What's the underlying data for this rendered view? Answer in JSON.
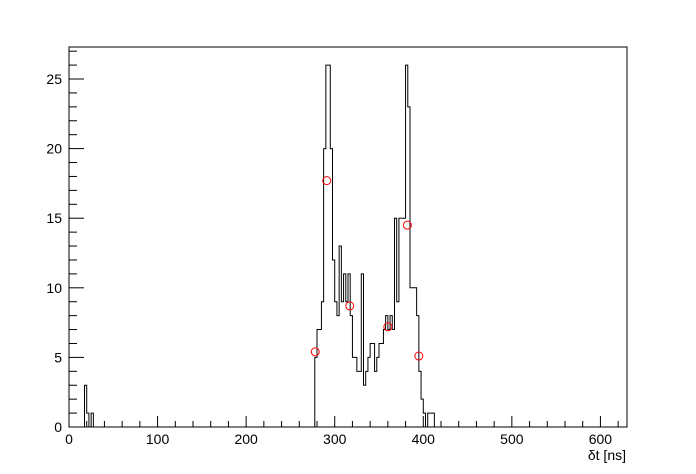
{
  "chart_data": {
    "type": "histogram",
    "title": "",
    "xlabel": "δt [ns]",
    "ylabel": "",
    "xlim": [
      0,
      630
    ],
    "ylim": [
      0,
      27.3
    ],
    "grid": false,
    "x_ticks": [
      0,
      100,
      200,
      300,
      400,
      500,
      600
    ],
    "x_tick_labels": [
      "0",
      "100",
      "200",
      "300",
      "400",
      "500",
      "600"
    ],
    "y_ticks": [
      0,
      5,
      10,
      15,
      20,
      25
    ],
    "y_tick_labels": [
      "0",
      "5",
      "10",
      "15",
      "20",
      "25"
    ],
    "line_color": "#000000",
    "marker_color": "#ff0000",
    "bin_width": 2.5,
    "bins": [
      [
        17.5,
        3
      ],
      [
        20,
        1
      ],
      [
        22.5,
        0
      ],
      [
        25,
        1
      ],
      [
        27.5,
        0
      ],
      [
        277.5,
        5
      ],
      [
        280,
        7
      ],
      [
        282.5,
        7
      ],
      [
        285,
        9
      ],
      [
        287.5,
        20
      ],
      [
        290,
        26
      ],
      [
        292.5,
        26
      ],
      [
        295,
        20
      ],
      [
        297.5,
        12
      ],
      [
        300,
        9
      ],
      [
        302.5,
        8
      ],
      [
        305,
        13
      ],
      [
        307.5,
        9
      ],
      [
        310,
        11
      ],
      [
        312.5,
        9
      ],
      [
        315,
        11
      ],
      [
        317.5,
        8
      ],
      [
        320,
        5
      ],
      [
        322.5,
        5
      ],
      [
        325,
        4
      ],
      [
        327.5,
        4
      ],
      [
        330,
        11
      ],
      [
        332.5,
        3
      ],
      [
        335,
        4
      ],
      [
        337.5,
        5
      ],
      [
        340,
        6
      ],
      [
        342.5,
        6
      ],
      [
        345,
        4
      ],
      [
        347.5,
        5
      ],
      [
        350,
        6
      ],
      [
        352.5,
        6
      ],
      [
        355,
        7
      ],
      [
        357.5,
        8
      ],
      [
        360,
        7
      ],
      [
        362.5,
        8
      ],
      [
        365,
        7
      ],
      [
        367.5,
        15
      ],
      [
        370,
        9
      ],
      [
        372.5,
        15
      ],
      [
        375,
        15
      ],
      [
        377.5,
        15
      ],
      [
        380,
        26
      ],
      [
        382.5,
        23
      ],
      [
        385,
        10
      ],
      [
        387.5,
        10
      ],
      [
        390,
        10
      ],
      [
        392.5,
        8
      ],
      [
        395,
        4
      ],
      [
        397.5,
        2
      ],
      [
        400,
        1
      ],
      [
        402.5,
        0
      ],
      [
        405,
        1
      ],
      [
        407.5,
        1
      ],
      [
        410,
        1
      ],
      [
        412.5,
        0
      ]
    ],
    "markers": [
      {
        "x": 278,
        "y": 5.4
      },
      {
        "x": 291,
        "y": 17.7
      },
      {
        "x": 317,
        "y": 8.7
      },
      {
        "x": 360,
        "y": 7.2
      },
      {
        "x": 382,
        "y": 14.5
      },
      {
        "x": 395,
        "y": 5.1
      }
    ]
  }
}
